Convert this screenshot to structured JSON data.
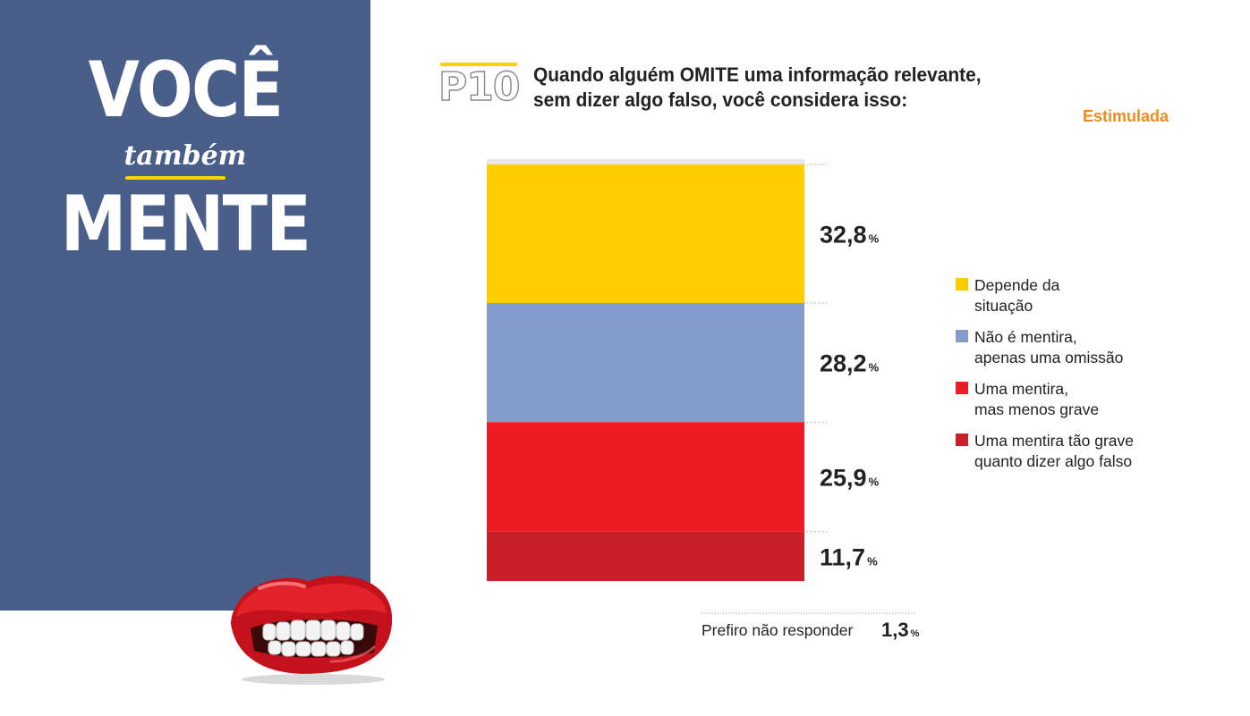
{
  "brand": {
    "title_line1": "VOCÊ",
    "title_small": "também",
    "title_line2": "MENTE",
    "panel_color": "#4a5e8a",
    "accent_color": "#ffd200"
  },
  "question": {
    "number": "P10",
    "line1": "Quando alguém OMITE uma informação relevante,",
    "line2": "sem dizer algo falso, você considera isso:",
    "tag": "Estimulada",
    "tag_color": "#f08a1c"
  },
  "chart_data": {
    "type": "bar",
    "stacked": true,
    "unit": "%",
    "series": [
      {
        "name": "Depende da\nsituação",
        "value": 32.8,
        "label": "32,8",
        "color": "#ffcc00"
      },
      {
        "name": "Não é mentira,\napenas uma omissão",
        "value": 28.2,
        "label": "28,2",
        "color": "#849bcc"
      },
      {
        "name": "Uma mentira,\nmas menos grave",
        "value": 25.9,
        "label": "25,9",
        "color": "#ed1c24"
      },
      {
        "name": "Uma mentira tão grave\nquanto dizer algo falso",
        "value": 11.7,
        "label": "11,7",
        "color": "#c91f26"
      }
    ],
    "no_answer": {
      "name": "Prefiro não responder",
      "value": 1.3,
      "label": "1,3"
    }
  }
}
